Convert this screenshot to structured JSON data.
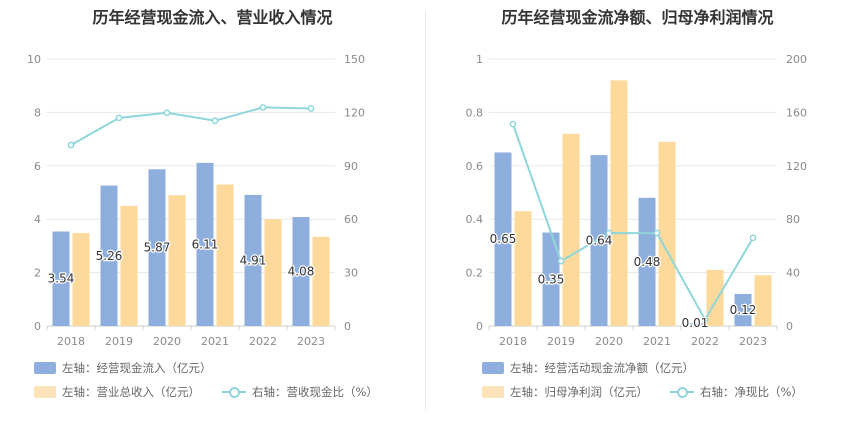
{
  "chart_data": [
    {
      "type": "bar",
      "title": "历年经营现金流入、营业收入情况",
      "categories": [
        "2018",
        "2019",
        "2020",
        "2021",
        "2022",
        "2023"
      ],
      "left_axis": {
        "ylim": [
          0,
          10
        ],
        "ticks": [
          "0",
          "2",
          "4",
          "6",
          "8",
          "10"
        ]
      },
      "right_axis": {
        "ylim": [
          0,
          150
        ],
        "ticks": [
          "0",
          "30",
          "60",
          "90",
          "120",
          "150"
        ]
      },
      "series": [
        {
          "name": "左轴：经营现金流入（亿元）",
          "axis": "left",
          "kind": "bar",
          "color": "#8eaedd",
          "values": [
            3.54,
            5.26,
            5.87,
            6.11,
            4.91,
            4.08
          ],
          "labels": [
            "3.54",
            "5.26",
            "5.87",
            "6.11",
            "4.91",
            "4.08"
          ]
        },
        {
          "name": "左轴：营业总收入（亿元）",
          "axis": "left",
          "kind": "bar",
          "color": "#fdd99b",
          "values": [
            3.48,
            4.5,
            4.9,
            5.3,
            4.0,
            3.34
          ]
        },
        {
          "name": "右轴：营收现金比（%）",
          "axis": "right",
          "kind": "line",
          "color": "#8ed6da",
          "values": [
            101.7,
            116.9,
            119.8,
            115.3,
            122.8,
            122.2
          ]
        }
      ]
    },
    {
      "type": "bar",
      "title": "历年经营现金流净额、归母净利润情况",
      "categories": [
        "2018",
        "2019",
        "2020",
        "2021",
        "2022",
        "2023"
      ],
      "left_axis": {
        "ylim": [
          0,
          1
        ],
        "ticks": [
          "0",
          "0.2",
          "0.4",
          "0.6",
          "0.8",
          "1"
        ]
      },
      "right_axis": {
        "ylim": [
          0,
          200
        ],
        "ticks": [
          "0",
          "40",
          "80",
          "120",
          "160",
          "200"
        ]
      },
      "series": [
        {
          "name": "左轴：经营活动现金流净额（亿元）",
          "axis": "left",
          "kind": "bar",
          "color": "#8eaedd",
          "values": [
            0.65,
            0.35,
            0.64,
            0.48,
            0.01,
            0.12
          ],
          "labels": [
            "0.65",
            "0.35",
            "0.64",
            "0.48",
            "0.01",
            "0.12"
          ]
        },
        {
          "name": "左轴：归母净利润（亿元）",
          "axis": "left",
          "kind": "bar",
          "color": "#fdd99b",
          "values": [
            0.43,
            0.72,
            0.92,
            0.69,
            0.21,
            0.19
          ]
        },
        {
          "name": "右轴：净现比（%）",
          "axis": "right",
          "kind": "line",
          "color": "#8ed6da",
          "values": [
            151.2,
            48.6,
            69.6,
            69.6,
            4.8,
            66.0
          ]
        }
      ]
    }
  ]
}
